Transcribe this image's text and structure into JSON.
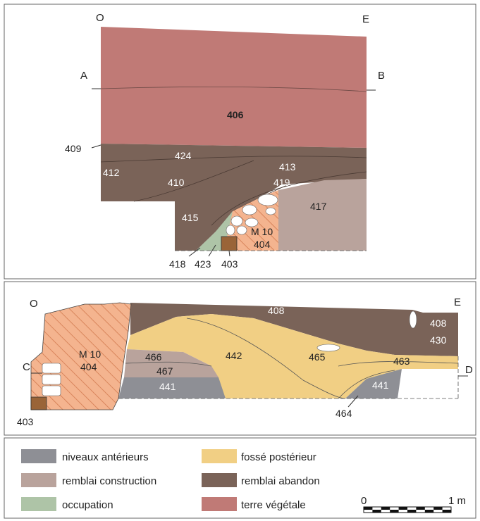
{
  "colors": {
    "terre_vegetale": "#c07a76",
    "remblai_abandon": "#7a6358",
    "remblai_construction": "#b9a39c",
    "occupation": "#aec4a7",
    "fosse_posterieur": "#f1cf84",
    "niveaux_anterieurs": "#8e8f95",
    "mur": "#f4b48f",
    "mur_hatch": "#d27a4f",
    "block_403": "#9a6438",
    "frame": "#555555"
  },
  "top_section": {
    "orient_left": "O",
    "orient_right": "E",
    "marker_a": "A",
    "marker_b": "B",
    "layers": {
      "l406": "406",
      "l409": "409",
      "l424": "424",
      "l412": "412",
      "l410": "410",
      "l413": "413",
      "l419": "419",
      "l417": "417",
      "l415": "415",
      "m10": "M 10",
      "l404": "404",
      "l418": "418",
      "l423": "423",
      "l403": "403"
    }
  },
  "bottom_section": {
    "orient_left": "O",
    "orient_right": "E",
    "marker_c": "C",
    "marker_d": "D",
    "layers": {
      "m10": "M 10",
      "l404": "404",
      "l403": "403",
      "l408a": "408",
      "l408b": "408",
      "l430": "430",
      "l442": "442",
      "l465": "465",
      "l463": "463",
      "l466": "466",
      "l467": "467",
      "l441a": "441",
      "l441b": "441",
      "l464": "464"
    }
  },
  "legend": [
    {
      "label": "niveaux antérieurs",
      "color": "#8e8f95"
    },
    {
      "label": "fossé postérieur",
      "color": "#f1cf84"
    },
    {
      "label": "remblai construction",
      "color": "#b9a39c"
    },
    {
      "label": "remblai abandon",
      "color": "#7a6358"
    },
    {
      "label": "occupation",
      "color": "#aec4a7"
    },
    {
      "label": "terre végétale",
      "color": "#c07a76"
    }
  ],
  "scale": {
    "start": "0",
    "end": "1 m"
  }
}
